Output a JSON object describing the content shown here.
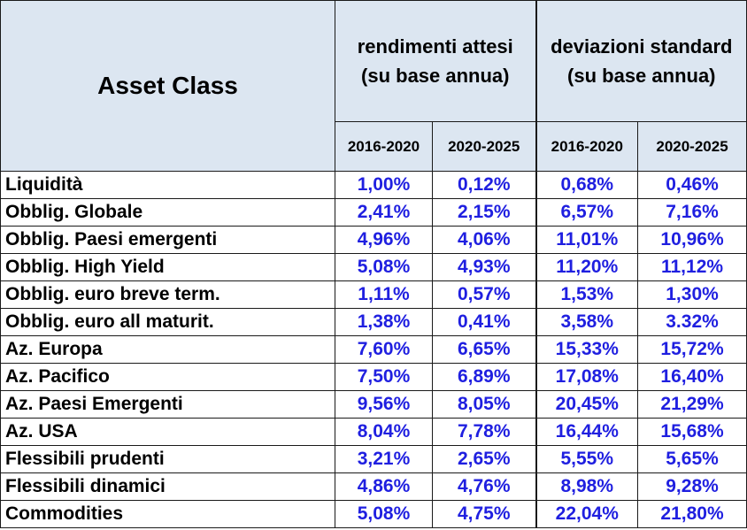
{
  "chart_data": {
    "type": "table",
    "header": {
      "asset_class": "Asset Class",
      "group1": [
        "rendimenti attesi",
        "(su base annua)"
      ],
      "group2": [
        "deviazioni standard",
        "(su base annua)"
      ],
      "periods": [
        "2016-2020",
        "2020-2025",
        "2016-2020",
        "2020-2025"
      ]
    },
    "rows": [
      {
        "name": "Liquidità",
        "values": [
          "1,00%",
          "0,12%",
          "0,68%",
          "0,46%"
        ]
      },
      {
        "name": "Obblig. Globale",
        "values": [
          "2,41%",
          "2,15%",
          "6,57%",
          "7,16%"
        ]
      },
      {
        "name": "Obblig. Paesi emergenti",
        "values": [
          "4,96%",
          "4,06%",
          "11,01%",
          "10,96%"
        ]
      },
      {
        "name": "Obblig. High Yield",
        "values": [
          "5,08%",
          "4,93%",
          "11,20%",
          "11,12%"
        ]
      },
      {
        "name": "Obblig. euro breve term.",
        "values": [
          "1,11%",
          "0,57%",
          "1,53%",
          "1,30%"
        ]
      },
      {
        "name": "Obblig. euro all maturit.",
        "values": [
          "1,38%",
          "0,41%",
          "3,58%",
          "3.32%"
        ]
      },
      {
        "name": "Az. Europa",
        "values": [
          "7,60%",
          "6,65%",
          "15,33%",
          "15,72%"
        ]
      },
      {
        "name": "Az. Pacifico",
        "values": [
          "7,50%",
          "6,89%",
          "17,08%",
          "16,40%"
        ]
      },
      {
        "name": "Az. Paesi Emergenti",
        "values": [
          "9,56%",
          "8,05%",
          "20,45%",
          "21,29%"
        ]
      },
      {
        "name": "Az. USA",
        "values": [
          "8,04%",
          "7,78%",
          "16,44%",
          "15,68%"
        ]
      },
      {
        "name": "Flessibili prudenti",
        "values": [
          "3,21%",
          "2,65%",
          "5,55%",
          "5,65%"
        ]
      },
      {
        "name": "Flessibili dinamici",
        "values": [
          "4,86%",
          "4,76%",
          "8,98%",
          "9,28%"
        ]
      },
      {
        "name": "Commodities",
        "values": [
          "5,08%",
          "4,75%",
          "22,04%",
          "21,80%"
        ]
      }
    ]
  },
  "colors": {
    "header_bg": "#dce6f1",
    "value_text": "#1f1fe0",
    "label_text": "#000000",
    "border": "#1a1a1a"
  }
}
